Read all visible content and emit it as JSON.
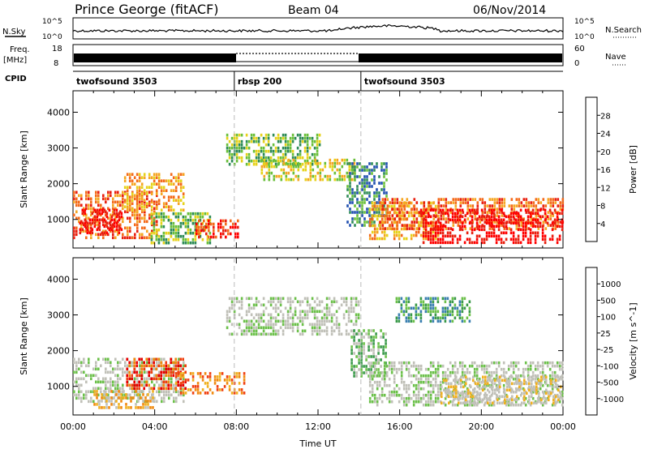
{
  "header": {
    "station": "Prince George (fitACF)",
    "beam": "Beam 04",
    "date": "06/Nov/2014"
  },
  "labels": {
    "nsky": "N.Sky",
    "nsearch": "N.Search",
    "freq": "Freq.",
    "freq_unit": "[MHz]",
    "nave": "Nave",
    "cpid": "CPID",
    "noise_tick_hi": "10^5",
    "noise_tick_lo": "10^0",
    "freq_tick_hi": "18",
    "freq_tick_lo": "8",
    "nave_tick_hi": "60",
    "nave_tick_lo": "0"
  },
  "cpid_segments": [
    {
      "label": "twofsound 3503",
      "start_h": 0,
      "end_h": 7.9
    },
    {
      "label": "rbsp 200",
      "start_h": 7.9,
      "end_h": 14.1
    },
    {
      "label": "twofsound 3503",
      "start_h": 14.1,
      "end_h": 24
    }
  ],
  "colors": {
    "power": [
      "#1a1aff",
      "#2050b0",
      "#2e8b57",
      "#6abf3a",
      "#e6d21a",
      "#f5a623",
      "#f46a1a",
      "#e82010",
      "#ff0000"
    ],
    "velocity": [
      "#1a2fbf",
      "#3a7fb0",
      "#3a9a4a",
      "#6cc04a",
      "#c0c0b8",
      "#c0c0b8",
      "#f0b020",
      "#f08a10",
      "#f04010",
      "#e80000"
    ]
  },
  "chart_data": [
    {
      "type": "heatmap",
      "name": "power",
      "ylabel": "Slant Range [km]",
      "colorbar_label": "Power [dB]",
      "colorbar_ticks": [
        "4",
        "8",
        "12",
        "16",
        "20",
        "24",
        "28"
      ],
      "x_ticks": [
        "00:00",
        "04:00",
        "08:00",
        "12:00",
        "16:00",
        "20:00",
        "00:00"
      ],
      "xlim": [
        0,
        24
      ],
      "ylim": [
        200,
        4600
      ],
      "y_ticks": [
        "1000",
        "2000",
        "3000",
        "4000"
      ],
      "regions": [
        {
          "t0": 0.0,
          "t1": 4.2,
          "r0": 400,
          "r1": 1800,
          "level": 6
        },
        {
          "t0": 0.3,
          "t1": 2.5,
          "r0": 600,
          "r1": 1300,
          "level": 8
        },
        {
          "t0": 2.5,
          "t1": 5.5,
          "r0": 1200,
          "r1": 2300,
          "level": 5
        },
        {
          "t0": 3.8,
          "t1": 6.8,
          "r0": 300,
          "r1": 1200,
          "level": 3
        },
        {
          "t0": 6.0,
          "t1": 8.2,
          "r0": 500,
          "r1": 1000,
          "level": 7
        },
        {
          "t0": 7.5,
          "t1": 12.2,
          "r0": 2500,
          "r1": 3400,
          "level": 3
        },
        {
          "t0": 9.2,
          "t1": 13.8,
          "r0": 2100,
          "r1": 2700,
          "level": 4
        },
        {
          "t0": 13.4,
          "t1": 15.4,
          "r0": 800,
          "r1": 2600,
          "level": 2
        },
        {
          "t0": 14.5,
          "t1": 18.0,
          "r0": 400,
          "r1": 1500,
          "level": 5
        },
        {
          "t0": 15.0,
          "t1": 24.0,
          "r0": 700,
          "r1": 1600,
          "level": 6
        },
        {
          "t0": 17.0,
          "t1": 24.0,
          "r0": 300,
          "r1": 1300,
          "level": 8
        }
      ]
    },
    {
      "type": "heatmap",
      "name": "velocity",
      "xlabel": "Time UT",
      "ylabel": "Slant Range [km]",
      "colorbar_label": "Velocity [m s^-1]",
      "colorbar_ticks": [
        "1000",
        "500",
        "100",
        "25",
        "-25",
        "-100",
        "-500",
        "-1000"
      ],
      "x_ticks": [
        "00:00",
        "04:00",
        "08:00",
        "12:00",
        "16:00",
        "20:00",
        "00:00"
      ],
      "xlim": [
        0,
        24
      ],
      "ylim": [
        200,
        4600
      ],
      "y_ticks": [
        "1000",
        "2000",
        "3000",
        "4000"
      ],
      "regions": [
        {
          "t0": 0.0,
          "t1": 5.5,
          "r0": 500,
          "r1": 1800,
          "level": 4
        },
        {
          "t0": 2.6,
          "t1": 5.6,
          "r0": 900,
          "r1": 1800,
          "level": 8
        },
        {
          "t0": 1.0,
          "t1": 4.0,
          "r0": 400,
          "r1": 900,
          "level": 6
        },
        {
          "t0": 5.0,
          "t1": 8.5,
          "r0": 800,
          "r1": 1400,
          "level": 7
        },
        {
          "t0": 7.5,
          "t1": 14.0,
          "r0": 2400,
          "r1": 3500,
          "level": 4
        },
        {
          "t0": 13.6,
          "t1": 15.4,
          "r0": 1200,
          "r1": 2600,
          "level": 3
        },
        {
          "t0": 14.5,
          "t1": 24.0,
          "r0": 400,
          "r1": 1700,
          "level": 4
        },
        {
          "t0": 18.0,
          "t1": 24.0,
          "r0": 500,
          "r1": 1300,
          "level": 5
        },
        {
          "t0": 15.8,
          "t1": 19.5,
          "r0": 2800,
          "r1": 3500,
          "level": 2
        }
      ]
    }
  ]
}
